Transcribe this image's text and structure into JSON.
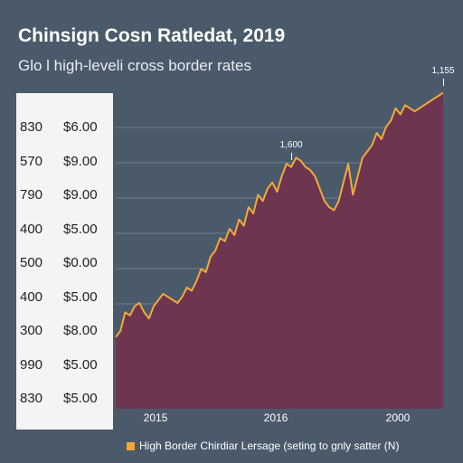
{
  "chart_data": {
    "type": "area",
    "title": "Chinsign Cosn Ratledat, 2019",
    "subtitle": "Glo l high-leveli cross border rates",
    "y_tick_labels": [
      [
        "830",
        "$6.00"
      ],
      [
        "570",
        "$9.00"
      ],
      [
        "790",
        "$9.00"
      ],
      [
        "400",
        "$5.00"
      ],
      [
        "500",
        "$0.00"
      ],
      [
        "400",
        "$5.00"
      ],
      [
        "300",
        "$8.00"
      ],
      [
        "990",
        "$5.00"
      ],
      [
        "830",
        "$5.00"
      ]
    ],
    "x_tick_labels": [
      "2015",
      "2016",
      "2000"
    ],
    "ylim": [
      0,
      100
    ],
    "series": [
      {
        "name": "High Border Chirdiar Lersage (seting to gnly satter (N)",
        "color": "#f3a93a",
        "fill": "#6d3550",
        "values": [
          22,
          24,
          30,
          29,
          32,
          33,
          30,
          28,
          32,
          34,
          36,
          35,
          34,
          33,
          35,
          38,
          37,
          40,
          44,
          43,
          48,
          50,
          54,
          53,
          57,
          55,
          60,
          58,
          64,
          62,
          68,
          66,
          70,
          72,
          69,
          74,
          78,
          77,
          80,
          79,
          77,
          76,
          74,
          70,
          66,
          64,
          63,
          66,
          72,
          78,
          68,
          74,
          80,
          82,
          84,
          88,
          86,
          90,
          92,
          96,
          94,
          97,
          96,
          95,
          96,
          97,
          98,
          99,
          100,
          101
        ]
      }
    ],
    "annotations": [
      {
        "text": "1,600",
        "index": 37
      },
      {
        "text": "1,155",
        "index": 69
      }
    ],
    "legend_placement": "bottom",
    "grid": true,
    "colors": {
      "background": "#4a5a6b",
      "line": "#f3a93a",
      "area": "#6d3550",
      "gridline": "#6e7d8c"
    }
  }
}
